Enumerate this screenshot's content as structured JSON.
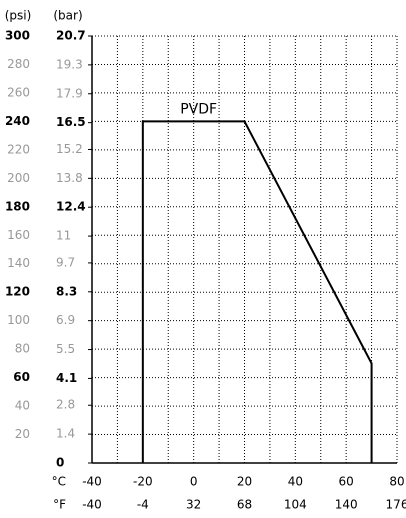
{
  "chart_data": {
    "type": "line",
    "y_units": [
      "(psi)",
      "(bar)"
    ],
    "x_units": [
      "°C",
      "°F"
    ],
    "annotation": "PVDF",
    "x": [
      -20,
      -20,
      20,
      70,
      70
    ],
    "series": [
      {
        "name": "PVDF",
        "color": "#000000",
        "values": [
          0,
          240,
          240,
          70,
          0
        ]
      }
    ],
    "xlim": [
      -40,
      80
    ],
    "xticks": [
      -40,
      -20,
      0,
      20,
      40,
      60,
      80
    ],
    "x2lim": [
      -40,
      176
    ],
    "x2ticks": [
      -40,
      -4,
      32,
      68,
      104,
      140,
      176
    ],
    "xgrid": [
      -30,
      -20,
      -10,
      0,
      10,
      20,
      30,
      40,
      50,
      60,
      70,
      80
    ],
    "ylim": [
      0,
      300
    ],
    "yticks": [
      20,
      40,
      60,
      80,
      100,
      120,
      140,
      160,
      180,
      200,
      220,
      240,
      260,
      280,
      300
    ],
    "y2lim": [
      0,
      20.7
    ],
    "y2ticks": [
      0,
      1.4,
      2.8,
      4.1,
      5.5,
      6.9,
      8.3,
      9.7,
      11.0,
      12.4,
      13.8,
      15.2,
      16.5,
      17.9,
      19.3,
      20.7
    ],
    "grid": true
  }
}
